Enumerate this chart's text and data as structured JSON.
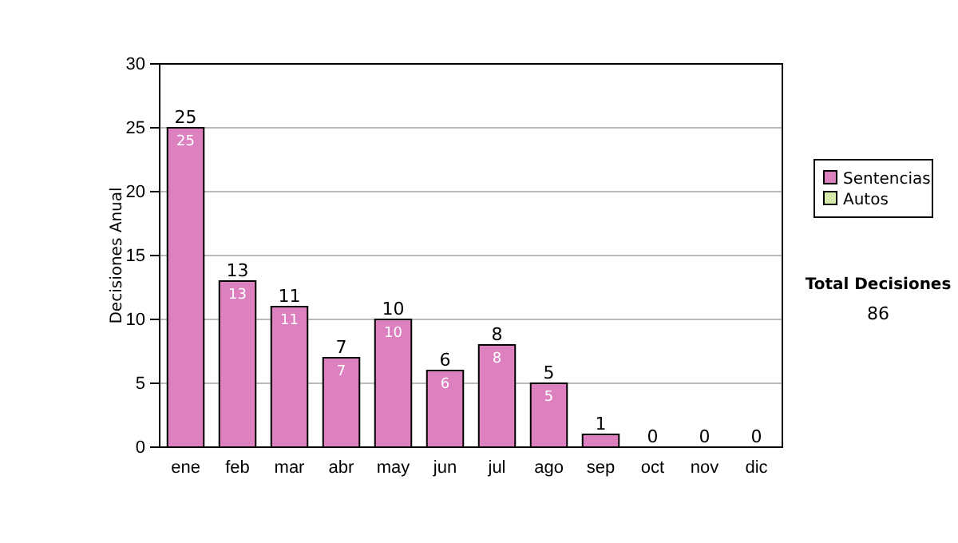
{
  "chart_data": {
    "type": "bar",
    "ylabel": "Decisiones Anual",
    "categories": [
      "ene",
      "feb",
      "mar",
      "abr",
      "may",
      "jun",
      "jul",
      "ago",
      "sep",
      "oct",
      "nov",
      "dic"
    ],
    "stacked": true,
    "series": [
      {
        "name": "Sentencias",
        "color": "#dd80c0",
        "values": [
          25,
          13,
          11,
          7,
          10,
          6,
          8,
          5,
          1,
          0,
          0,
          0
        ],
        "value_labels": [
          "25",
          "13",
          "11",
          "7",
          "10",
          "6",
          "8",
          "5",
          null,
          null,
          null,
          null
        ]
      },
      {
        "name": "Autos",
        "color": "#d4eca8",
        "values": [
          0,
          0,
          0,
          0,
          0,
          0,
          0,
          0,
          0,
          0,
          0,
          0
        ]
      }
    ],
    "totals": [
      "25",
      "13",
      "11",
      "7",
      "10",
      "6",
      "8",
      "5",
      "1",
      "0",
      "0",
      "0"
    ],
    "ylim": [
      0,
      30
    ],
    "yticks": [
      0,
      5,
      10,
      15,
      20,
      25,
      30
    ],
    "grid": "y",
    "legend": "right",
    "annotations": [
      "Total Decisiones",
      "86"
    ]
  }
}
